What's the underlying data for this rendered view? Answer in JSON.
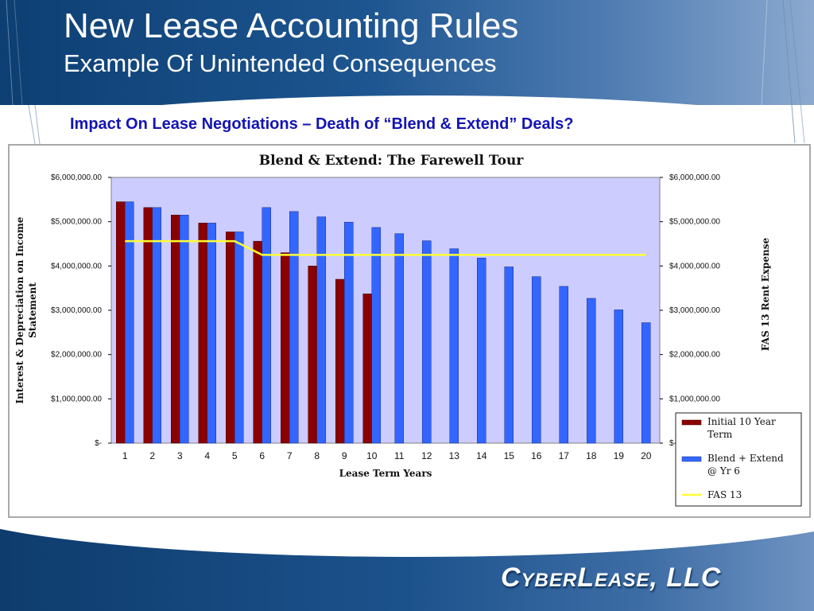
{
  "slide": {
    "title": "New Lease Accounting Rules",
    "subtitle": "Example Of Unintended Consequences",
    "heading": "Impact On Lease Negotiations – Death of “Blend & Extend” Deals?",
    "brand": "CyberLease, LLC"
  },
  "colors": {
    "initial_bar": "#8b0000",
    "blend_bar": "#3366ff",
    "fas13_line": "#ffff33",
    "plot_background": "#ccccff",
    "heading": "#1414b4"
  },
  "chart_data": {
    "type": "bar",
    "title": "Blend & Extend:  The Farewell Tour",
    "xlabel": "Lease Term Years",
    "ylabel": "Interest & Depreciation on Income Statement",
    "y2label": "FAS 13 Rent Expense",
    "categories": [
      "1",
      "2",
      "3",
      "4",
      "5",
      "6",
      "7",
      "8",
      "9",
      "10",
      "11",
      "12",
      "13",
      "14",
      "15",
      "16",
      "17",
      "18",
      "19",
      "20"
    ],
    "ylim": [
      0,
      6000000
    ],
    "yticks": [
      "$-",
      "$1,000,000.00",
      "$2,000,000.00",
      "$3,000,000.00",
      "$4,000,000.00",
      "$5,000,000.00",
      "$6,000,000.00"
    ],
    "grid": false,
    "legend_position": "bottom-right",
    "series": [
      {
        "name": "Initial 10 Year Term",
        "kind": "bar",
        "values": [
          5450000,
          5320000,
          5150000,
          4970000,
          4770000,
          4560000,
          4300000,
          4000000,
          3700000,
          3370000,
          null,
          null,
          null,
          null,
          null,
          null,
          null,
          null,
          null,
          null
        ]
      },
      {
        "name": "Blend + Extend @ Yr 6",
        "kind": "bar",
        "values": [
          5450000,
          5320000,
          5150000,
          4970000,
          4770000,
          5320000,
          5230000,
          5110000,
          4990000,
          4870000,
          4730000,
          4570000,
          4390000,
          4180000,
          3980000,
          3760000,
          3540000,
          3270000,
          3010000,
          2720000
        ]
      },
      {
        "name": "FAS 13",
        "kind": "line",
        "values": [
          4560000,
          4560000,
          4560000,
          4560000,
          4560000,
          4250000,
          4250000,
          4250000,
          4250000,
          4250000,
          4250000,
          4250000,
          4250000,
          4250000,
          4250000,
          4250000,
          4250000,
          4250000,
          4250000,
          4250000
        ]
      }
    ]
  }
}
